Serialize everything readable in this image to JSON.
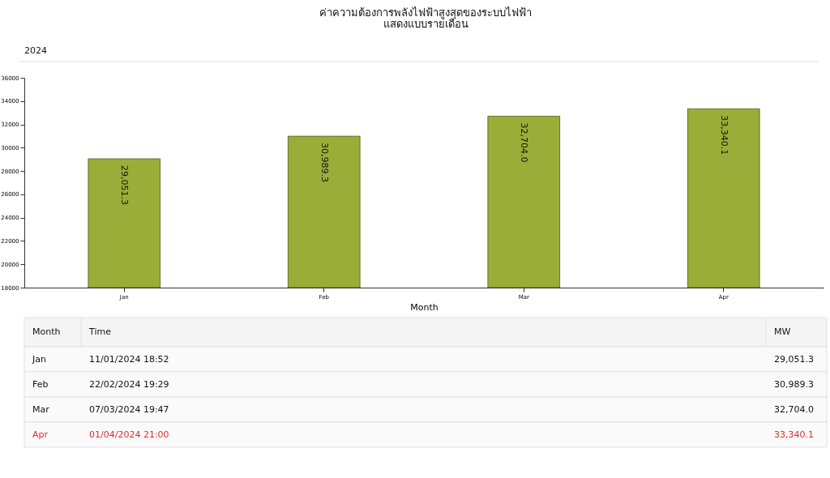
{
  "chart_data": {
    "type": "bar",
    "title": "ค่าความต้องการพลังไฟฟ้าสูงสุดของระบบไฟฟ้า",
    "subtitle": "แสดงแบบรายเดือน",
    "xlabel": "Month",
    "categories": [
      "Jan",
      "Feb",
      "Mar",
      "Apr"
    ],
    "values": [
      29051.3,
      30989.3,
      32704.0,
      33340.1
    ],
    "value_labels": [
      "29,051.3",
      "30,989.3",
      "32,704.0",
      "33,340.1"
    ],
    "color": "#9aad38",
    "ylim": [
      18000,
      36000
    ],
    "yticks": [
      18000,
      20000,
      22000,
      24000,
      26000,
      28000,
      30000,
      32000,
      34000,
      36000
    ],
    "grid": false,
    "annotations": [
      "2024",
      "Month",
      "Time",
      "MW",
      "11/01/2024  18:52",
      "22/02/2024  19:29",
      "07/03/2024  19:47",
      "01/04/2024  21:00"
    ]
  }
}
